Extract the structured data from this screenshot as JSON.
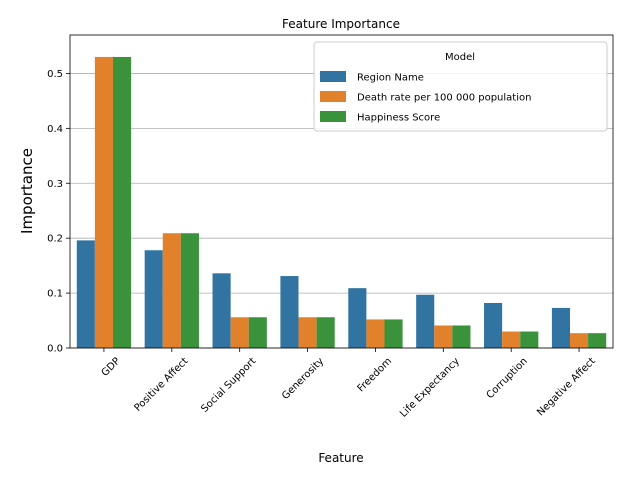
{
  "chart_data": {
    "type": "bar",
    "title": "Feature Importance",
    "xlabel": "Feature",
    "ylabel": "Importance",
    "categories": [
      "GDP",
      "Positive Affect",
      "Social Support",
      "Generosity",
      "Freedom",
      "Life Expectancy",
      "Corruption",
      "Negative Affect"
    ],
    "series": [
      {
        "name": "Region Name",
        "color": "#3274a1",
        "values": [
          0.196,
          0.178,
          0.136,
          0.131,
          0.109,
          0.097,
          0.082,
          0.073
        ]
      },
      {
        "name": "Death rate per 100 000 population",
        "color": "#e1812c",
        "values": [
          0.53,
          0.209,
          0.056,
          0.056,
          0.052,
          0.041,
          0.03,
          0.027
        ]
      },
      {
        "name": "Happiness Score",
        "color": "#3a923a",
        "values": [
          0.53,
          0.209,
          0.056,
          0.056,
          0.052,
          0.041,
          0.03,
          0.027
        ]
      }
    ],
    "ylim": [
      0,
      0.57
    ],
    "yticks": [
      "0.0",
      "0.1",
      "0.2",
      "0.3",
      "0.4",
      "0.5"
    ],
    "grid": "horizontal",
    "legend_title": "Model",
    "legend_position": "top-right"
  }
}
